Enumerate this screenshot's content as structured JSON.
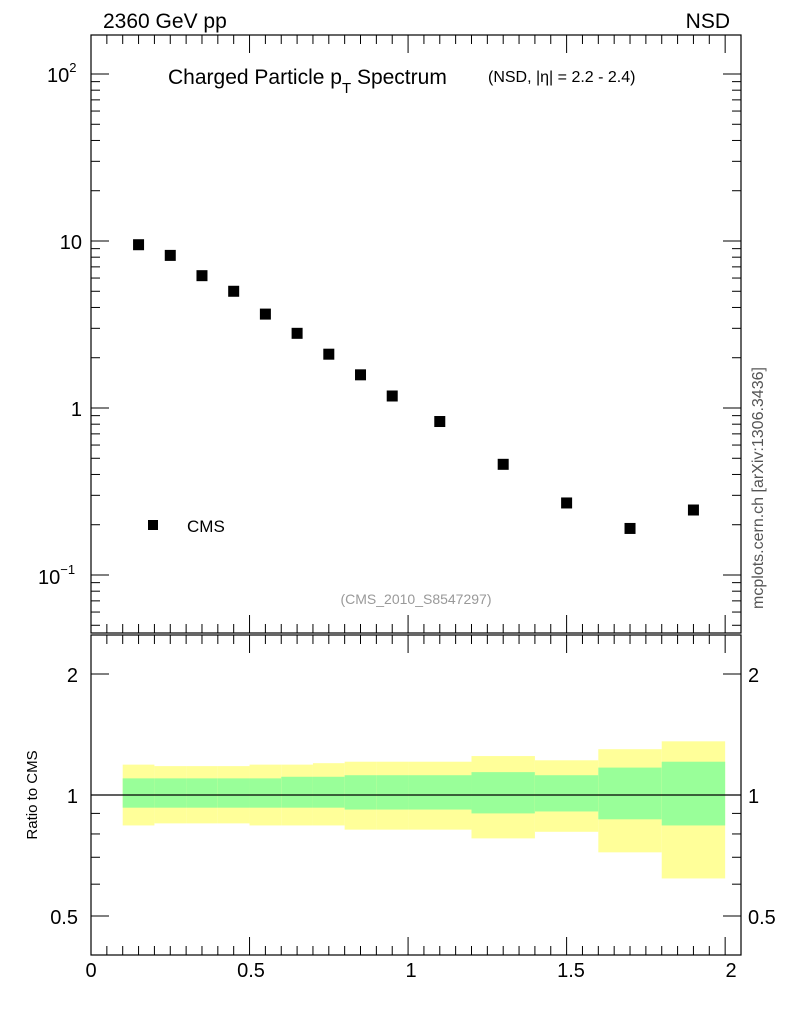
{
  "header": {
    "energy_label": "2360 GeV pp",
    "process_label": "NSD"
  },
  "watermark": {
    "side_text": "mcplots.cern.ch [arXiv:1306.3436]",
    "analysis_id": "(CMS_2010_S8547297)"
  },
  "colors": {
    "band_inner": "#99ff99",
    "band_outer": "#ffff99",
    "marker": "#000000",
    "ref_line": "#000000"
  },
  "chart_data": [
    {
      "type": "scatter",
      "title_main": "Charged Particle p",
      "title_sub": "T",
      "title_word": " Spectrum",
      "title_qualifier": "(NSD, |η| = 2.2 - 2.4)",
      "xlim": [
        0,
        2.05
      ],
      "yscale": "log",
      "ylim": [
        0.045,
        170
      ],
      "y_tick_labels": {
        "major_100": "10",
        "major_100_exp": "2",
        "major_10": "10",
        "major_1": "1",
        "major_01": "10",
        "major_01_exp": "−1"
      },
      "legend": {
        "position": "bottom-left",
        "entries": [
          "CMS"
        ]
      },
      "series": [
        {
          "name": "CMS",
          "x": [
            0.15,
            0.25,
            0.35,
            0.45,
            0.55,
            0.65,
            0.75,
            0.85,
            0.95,
            1.1,
            1.3,
            1.5,
            1.7,
            1.9
          ],
          "y": [
            9.5,
            8.2,
            6.2,
            5.0,
            3.65,
            2.8,
            2.1,
            1.58,
            1.18,
            0.83,
            0.46,
            0.27,
            0.19,
            0.245
          ]
        }
      ]
    },
    {
      "type": "area",
      "ylabel": "Ratio to CMS",
      "xlim": [
        0,
        2.05
      ],
      "ylim": [
        0.4,
        2.4
      ],
      "x_tick_labels": [
        "0",
        "0.5",
        "1",
        "1.5",
        "2"
      ],
      "y_tick_labels": [
        "0.5",
        "1",
        "2"
      ],
      "reference": 1.0,
      "bins": {
        "edges": [
          0.1,
          0.2,
          0.3,
          0.4,
          0.5,
          0.6,
          0.7,
          0.8,
          0.9,
          1.0,
          1.2,
          1.4,
          1.6,
          1.8,
          2.0
        ],
        "inner_low": [
          0.93,
          0.93,
          0.93,
          0.93,
          0.93,
          0.93,
          0.93,
          0.92,
          0.92,
          0.92,
          0.9,
          0.91,
          0.87,
          0.84
        ],
        "inner_high": [
          1.1,
          1.1,
          1.1,
          1.1,
          1.1,
          1.11,
          1.11,
          1.12,
          1.12,
          1.12,
          1.14,
          1.12,
          1.17,
          1.21
        ],
        "outer_low": [
          0.84,
          0.85,
          0.85,
          0.85,
          0.84,
          0.84,
          0.84,
          0.82,
          0.82,
          0.82,
          0.78,
          0.81,
          0.72,
          0.62
        ],
        "outer_high": [
          1.19,
          1.18,
          1.18,
          1.18,
          1.19,
          1.19,
          1.2,
          1.21,
          1.21,
          1.21,
          1.25,
          1.22,
          1.3,
          1.36
        ]
      }
    }
  ]
}
